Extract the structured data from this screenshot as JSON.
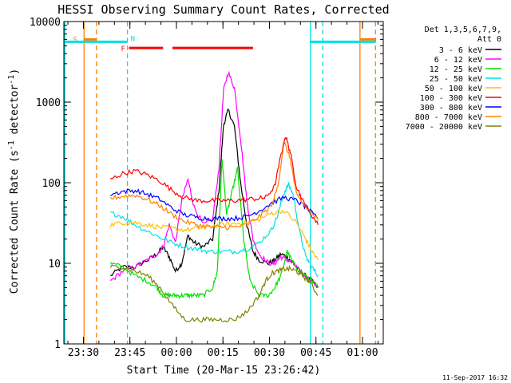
{
  "chart_data": {
    "type": "line",
    "title": "HESSI Observing Summary Count Rates, Corrected",
    "xlabel": "Start Time (20-Mar-15 23:26:42)",
    "ylabel": "Corrected Count Rate (s",
    "ylabel_sup": "-1",
    "ylabel_mid": " detector",
    "ylabel_sup2": "-1",
    "ylabel_end": ")",
    "y_scale": "log",
    "ylim": [
      1,
      10000
    ],
    "x_unit": "minutes after 20-Mar-15 23:26:42",
    "xlim": [
      -3,
      100
    ],
    "x_ticks": [
      {
        "t": 3.3,
        "label": "23:30"
      },
      {
        "t": 18.3,
        "label": "23:45"
      },
      {
        "t": 33.3,
        "label": "00:00"
      },
      {
        "t": 48.3,
        "label": "00:15"
      },
      {
        "t": 63.3,
        "label": "00:30"
      },
      {
        "t": 78.3,
        "label": "00:45"
      },
      {
        "t": 93.3,
        "label": "01:00"
      }
    ],
    "y_ticks": [
      {
        "v": 1,
        "label": "1"
      },
      {
        "v": 10,
        "label": "10"
      },
      {
        "v": 100,
        "label": "100"
      },
      {
        "v": 1000,
        "label": "1000"
      },
      {
        "v": 10000,
        "label": "10000"
      }
    ],
    "legend_header": [
      "Det 1,3,5,6,7,9,",
      "Att 0"
    ],
    "legend_position": "right",
    "timestamp": "11-Sep-2017 16:32",
    "flags": {
      "S": {
        "label": "S",
        "color": "#ff8000",
        "segments": [
          [
            3.5,
            7.5
          ],
          [
            92.5,
            97.5
          ]
        ],
        "value": 6000
      },
      "N": {
        "label": "N",
        "color": "#00e0e0",
        "segments": [
          [
            -3,
            17.5
          ],
          [
            76.5,
            97.5
          ]
        ],
        "value": 5600
      },
      "F": {
        "label": "F",
        "color": "#ff0000",
        "segments": [
          [
            18,
            29
          ],
          [
            32,
            58
          ]
        ],
        "value": 4700
      }
    },
    "vlines": [
      {
        "t": -2.7,
        "color": "#00e0e0",
        "dash": false
      },
      {
        "t": 3.5,
        "color": "#ff8000",
        "dash": false
      },
      {
        "t": 7.5,
        "color": "#ff8000",
        "dash": true
      },
      {
        "t": 17.5,
        "color": "#00e0e0",
        "dash": true
      },
      {
        "t": 76.5,
        "color": "#00e0e0",
        "dash": false
      },
      {
        "t": 80.5,
        "color": "#00e0e0",
        "dash": true
      },
      {
        "t": 92.5,
        "color": "#ff8000",
        "dash": false
      },
      {
        "t": 97.5,
        "color": "#ff8000",
        "dash": true
      }
    ],
    "series": [
      {
        "name": "3 - 6 keV",
        "color": "#000000",
        "x": [
          12,
          16,
          20,
          24,
          27,
          29,
          31,
          33,
          35,
          37,
          39,
          42,
          45,
          47,
          48.5,
          50,
          52,
          54,
          56,
          58,
          60,
          63,
          65,
          67,
          69,
          71,
          73,
          75,
          77,
          79
        ],
        "y": [
          7,
          9,
          9,
          11,
          13,
          16,
          12,
          8,
          10,
          22,
          18,
          16,
          20,
          80,
          520,
          800,
          500,
          100,
          30,
          14,
          11,
          10,
          11,
          13,
          12,
          10,
          8,
          7,
          6,
          5
        ]
      },
      {
        "name": "6 - 12 keV",
        "color": "#ff00ff",
        "x": [
          12,
          16,
          20,
          24,
          27,
          29,
          31,
          33,
          35,
          37,
          39,
          42,
          45,
          47,
          48.5,
          50,
          52,
          54,
          56,
          58,
          60,
          63,
          65,
          67,
          69,
          71,
          73,
          75,
          77,
          79
        ],
        "y": [
          6,
          8,
          9,
          11,
          13,
          16,
          30,
          18,
          60,
          110,
          50,
          30,
          35,
          150,
          1400,
          2350,
          1500,
          350,
          60,
          20,
          13,
          10,
          10,
          12,
          11,
          10,
          8,
          7,
          6,
          5
        ]
      },
      {
        "name": "12 - 25 keV",
        "color": "#00e000",
        "x": [
          12,
          16,
          20,
          24,
          27,
          29,
          31,
          33,
          35,
          37,
          39,
          42,
          45,
          46.5,
          48,
          49.5,
          51,
          53,
          55,
          57,
          60,
          63,
          65,
          67,
          69,
          71,
          73,
          75,
          77,
          79
        ],
        "y": [
          10,
          9,
          7,
          6,
          5,
          4,
          4,
          4,
          4,
          4,
          4,
          4,
          5,
          8,
          200,
          40,
          70,
          150,
          20,
          6,
          4,
          4,
          5,
          7,
          14,
          10,
          8,
          7,
          6,
          5
        ]
      },
      {
        "name": "25 - 50 keV",
        "color": "#00e0e0",
        "x": [
          12,
          16,
          20,
          24,
          28,
          32,
          36,
          40,
          44,
          48,
          52,
          56,
          60,
          64,
          66,
          68,
          69.5,
          71,
          73,
          75,
          77,
          79
        ],
        "y": [
          42,
          38,
          30,
          25,
          21,
          18,
          16,
          15,
          14,
          14,
          14,
          15,
          18,
          26,
          40,
          75,
          95,
          70,
          25,
          12,
          9,
          7
        ]
      },
      {
        "name": "50 - 100 keV",
        "color": "#ffbf00",
        "x": [
          12,
          16,
          20,
          24,
          28,
          32,
          36,
          40,
          44,
          48,
          52,
          56,
          60,
          64,
          68,
          72,
          75,
          77,
          79
        ],
        "y": [
          30,
          32,
          32,
          30,
          28,
          27,
          26,
          27,
          29,
          30,
          31,
          32,
          35,
          42,
          45,
          32,
          20,
          14,
          11
        ]
      },
      {
        "name": "100 - 300 keV",
        "color": "#ff0000",
        "x": [
          12,
          16,
          20,
          24,
          28,
          32,
          36,
          40,
          44,
          48,
          52,
          56,
          60,
          62,
          65,
          67,
          68.5,
          70,
          72,
          74,
          76,
          79
        ],
        "y": [
          110,
          130,
          140,
          125,
          105,
          80,
          65,
          60,
          60,
          60,
          60,
          62,
          64,
          65,
          90,
          220,
          380,
          240,
          90,
          60,
          45,
          30
        ]
      },
      {
        "name": "300 - 800 keV",
        "color": "#0000ff",
        "x": [
          12,
          16,
          20,
          24,
          28,
          32,
          36,
          40,
          44,
          48,
          52,
          56,
          60,
          64,
          68,
          72,
          75,
          79
        ],
        "y": [
          72,
          78,
          80,
          72,
          62,
          48,
          40,
          37,
          36,
          36,
          36,
          38,
          45,
          56,
          66,
          60,
          50,
          35
        ]
      },
      {
        "name": "800 - 7000 keV",
        "color": "#ff8000",
        "x": [
          12,
          16,
          20,
          24,
          28,
          32,
          36,
          40,
          44,
          48,
          52,
          56,
          60,
          64,
          66,
          68,
          70,
          72,
          75,
          79
        ],
        "y": [
          64,
          68,
          70,
          62,
          52,
          40,
          33,
          30,
          28,
          28,
          28,
          30,
          38,
          52,
          90,
          320,
          200,
          70,
          50,
          35
        ]
      },
      {
        "name": "7000 - 20000 keV",
        "color": "#808000",
        "x": [
          12,
          16,
          20,
          24,
          28,
          32,
          36,
          40,
          44,
          48,
          52,
          56,
          60,
          62,
          64,
          66,
          68,
          70,
          72,
          74,
          76,
          79
        ],
        "y": [
          9,
          9,
          8,
          7,
          5,
          3,
          2,
          2,
          2,
          2,
          2,
          2.5,
          4,
          6,
          7.5,
          8,
          8.5,
          8.5,
          8,
          7,
          6,
          4
        ]
      }
    ]
  }
}
